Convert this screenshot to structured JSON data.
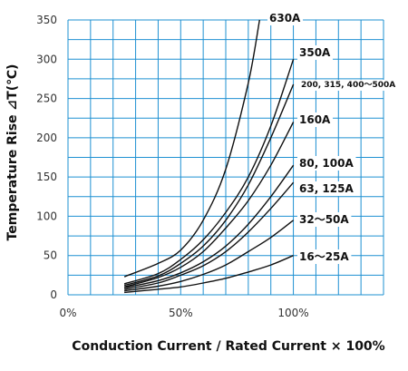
{
  "chart_data": {
    "type": "line",
    "xlabel": "Conduction Current / Rated Current × 100%",
    "ylabel": "Temperature Rise ⊿T(℃)",
    "xlim": [
      0,
      140
    ],
    "ylim": [
      0,
      350
    ],
    "x_ticks": [
      {
        "value": 0,
        "label": "0%"
      },
      {
        "value": 50,
        "label": "50%"
      },
      {
        "value": 100,
        "label": "100%"
      }
    ],
    "y_ticks": [
      0,
      50,
      100,
      150,
      200,
      250,
      300,
      350
    ],
    "grid": true,
    "series": [
      {
        "name": "630A",
        "x": [
          25,
          40,
          50,
          60,
          70,
          80,
          85
        ],
        "y": [
          23,
          40,
          57,
          95,
          160,
          270,
          350
        ]
      },
      {
        "name": "350A",
        "x": [
          25,
          40,
          50,
          60,
          70,
          80,
          90,
          100
        ],
        "y": [
          14,
          27,
          45,
          70,
          105,
          150,
          215,
          300
        ]
      },
      {
        "name": "200, 315, 400～500A",
        "x": [
          25,
          40,
          50,
          60,
          70,
          80,
          90,
          100
        ],
        "y": [
          12,
          24,
          40,
          62,
          95,
          140,
          200,
          268
        ]
      },
      {
        "name": "160A",
        "x": [
          25,
          40,
          50,
          60,
          70,
          80,
          90,
          100
        ],
        "y": [
          10,
          22,
          35,
          55,
          85,
          120,
          165,
          220
        ]
      },
      {
        "name": "80, 100A",
        "x": [
          25,
          40,
          50,
          60,
          70,
          80,
          90,
          100
        ],
        "y": [
          9,
          18,
          28,
          42,
          62,
          90,
          125,
          165
        ]
      },
      {
        "name": "63, 125A",
        "x": [
          25,
          40,
          50,
          60,
          70,
          80,
          90,
          100
        ],
        "y": [
          7,
          15,
          25,
          37,
          55,
          80,
          110,
          143
        ]
      },
      {
        "name": "32～50A",
        "x": [
          25,
          40,
          50,
          60,
          70,
          80,
          90,
          100
        ],
        "y": [
          5,
          11,
          17,
          26,
          38,
          55,
          73,
          95
        ]
      },
      {
        "name": "16～25A",
        "x": [
          25,
          40,
          50,
          60,
          70,
          80,
          90,
          100
        ],
        "y": [
          3,
          7,
          10,
          15,
          21,
          29,
          38,
          50
        ]
      }
    ]
  }
}
